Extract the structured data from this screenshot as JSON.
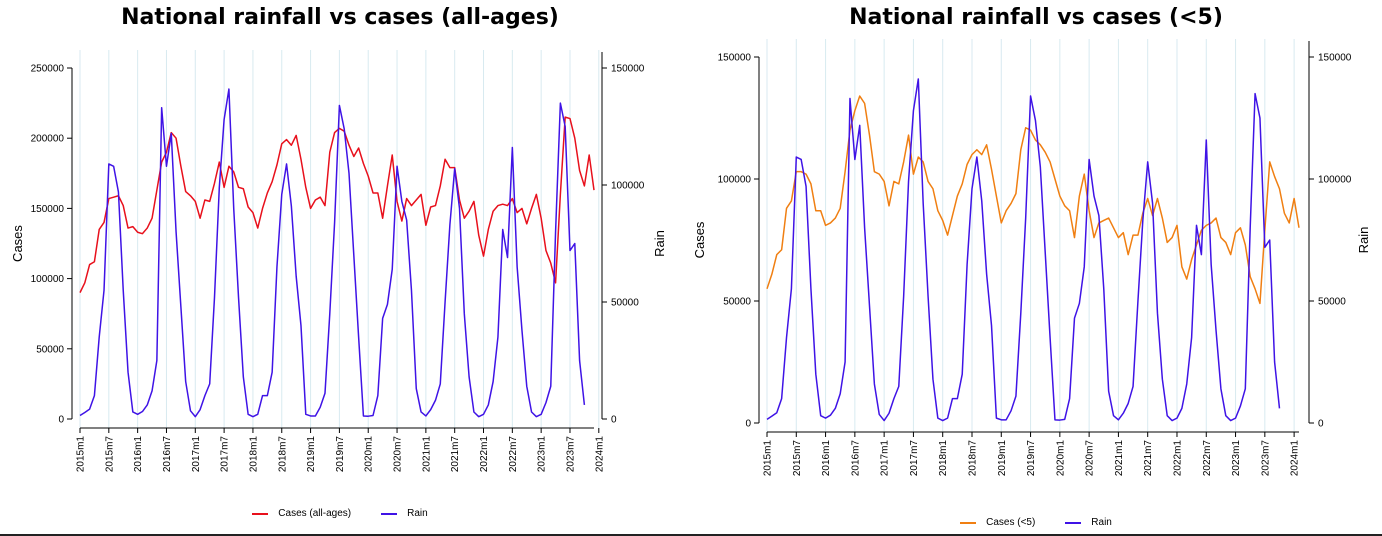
{
  "colors": {
    "cases_all": "#e8101c",
    "cases_u5": "#f07f12",
    "rain": "#3f13e6",
    "vgrid": "#d8eaf0"
  },
  "chart_data": [
    {
      "type": "line",
      "title": "National rainfall vs cases (all-ages)",
      "ylabel": "Cases",
      "y2label": "Rain",
      "ylim": [
        0,
        250000
      ],
      "y2lim": [
        0,
        150000
      ],
      "yticks": [
        "0",
        "50000",
        "100000",
        "150000",
        "200000",
        "250000"
      ],
      "y2ticks": [
        "0",
        "50000",
        "100000",
        "150000"
      ],
      "xticks": [
        "2015m1",
        "2015m7",
        "2016m1",
        "2016m7",
        "2017m1",
        "2017m7",
        "2018m1",
        "2018m7",
        "2019m1",
        "2019m7",
        "2020m1",
        "2020m7",
        "2021m1",
        "2021m7",
        "2022m1",
        "2022m7",
        "2023m1",
        "2023m7",
        "2024m1"
      ],
      "grid": "vertical lines at x ticks",
      "legend_position": "bottom",
      "series": [
        {
          "name": "Cases (all-ages)",
          "axis": "left",
          "color": "#e8101c",
          "values": [
            90000,
            97000,
            110000,
            112000,
            135000,
            140000,
            157000,
            158000,
            159000,
            152000,
            136000,
            137000,
            133000,
            132000,
            136000,
            143000,
            163000,
            183000,
            190000,
            204000,
            200000,
            180000,
            162000,
            159000,
            155000,
            143000,
            156000,
            155000,
            168000,
            183000,
            165000,
            180000,
            176000,
            165000,
            164000,
            151000,
            147000,
            136000,
            150000,
            161000,
            169000,
            181000,
            196000,
            199000,
            195000,
            202000,
            185000,
            165000,
            150000,
            156000,
            158000,
            152000,
            190000,
            204000,
            207000,
            205000,
            195000,
            187000,
            193000,
            182000,
            173000,
            161000,
            161000,
            143000,
            166000,
            188000,
            155000,
            141000,
            157000,
            152000,
            156000,
            160000,
            138000,
            151000,
            152000,
            166000,
            185000,
            179000,
            179000,
            156000,
            143000,
            148000,
            155000,
            131000,
            116000,
            135000,
            148000,
            152000,
            153000,
            152000,
            157000,
            147000,
            150000,
            139000,
            150000,
            160000,
            143000,
            120000,
            111000,
            97000,
            160000,
            215000,
            214000,
            200000,
            177000,
            166000,
            188000,
            163000
          ]
        },
        {
          "name": "Rain",
          "axis": "right",
          "color": "#3f13e6",
          "values": [
            1500,
            2800,
            4200,
            10000,
            35000,
            55000,
            109000,
            108000,
            97000,
            55000,
            20000,
            3000,
            2000,
            3200,
            6000,
            12000,
            25000,
            133000,
            108000,
            122000,
            80000,
            48000,
            16000,
            3500,
            1000,
            4000,
            10000,
            15000,
            52000,
            99000,
            128000,
            141000,
            90000,
            52000,
            18000,
            2000,
            1000,
            2000,
            10000,
            10000,
            20000,
            65000,
            96000,
            109000,
            91000,
            61000,
            40000,
            2000,
            1300,
            1300,
            5000,
            11000,
            45000,
            84000,
            134000,
            124000,
            105000,
            70000,
            35000,
            1300,
            1200,
            1500,
            10000,
            43000,
            49000,
            64000,
            108000,
            93000,
            85000,
            55000,
            13000,
            3000,
            1300,
            4000,
            8000,
            15000,
            50000,
            83000,
            107000,
            90000,
            45000,
            18000,
            3000,
            1000,
            2000,
            6000,
            16000,
            35000,
            81000,
            69000,
            116000,
            65000,
            38000,
            14000,
            3000,
            1000,
            2000,
            7000,
            14000,
            80000,
            135000,
            125000,
            72000,
            75000,
            25000,
            6000
          ]
        }
      ]
    },
    {
      "type": "line",
      "title": "National rainfall vs cases (<5)",
      "ylabel": "Cases",
      "y2label": "Rain",
      "ylim": [
        0,
        150000
      ],
      "y2lim": [
        0,
        150000
      ],
      "yticks": [
        "0",
        "50000",
        "100000",
        "150000"
      ],
      "y2ticks": [
        "0",
        "50000",
        "100000",
        "150000"
      ],
      "xticks": [
        "2015m1",
        "2015m7",
        "2016m1",
        "2016m7",
        "2017m1",
        "2017m7",
        "2018m1",
        "2018m7",
        "2019m1",
        "2019m7",
        "2020m1",
        "2020m7",
        "2021m1",
        "2021m7",
        "2022m1",
        "2022m7",
        "2023m1",
        "2023m7",
        "2024m1"
      ],
      "grid": "vertical lines at x ticks",
      "legend_position": "bottom",
      "series": [
        {
          "name": "Cases (<5)",
          "axis": "left",
          "color": "#f07f12",
          "values": [
            55000,
            61000,
            69000,
            71000,
            88000,
            91000,
            103000,
            103000,
            102000,
            98000,
            87000,
            87000,
            81000,
            82000,
            84000,
            88000,
            103000,
            120000,
            128000,
            134000,
            131000,
            118000,
            103000,
            102000,
            99000,
            89000,
            99000,
            98000,
            107000,
            118000,
            102000,
            109000,
            107000,
            99000,
            96000,
            87000,
            83000,
            77000,
            85000,
            93000,
            98000,
            106000,
            110000,
            112000,
            110000,
            114000,
            104000,
            93000,
            82000,
            87000,
            90000,
            94000,
            112000,
            121000,
            120000,
            116000,
            114000,
            111000,
            107000,
            100000,
            93000,
            89000,
            87000,
            76000,
            93000,
            102000,
            87000,
            76000,
            82000,
            83000,
            84000,
            80000,
            76000,
            78000,
            69000,
            77000,
            77000,
            86000,
            92000,
            85000,
            92000,
            84000,
            74000,
            76000,
            81000,
            64000,
            59000,
            67000,
            73000,
            79000,
            81000,
            82000,
            84000,
            76000,
            74000,
            69000,
            78000,
            80000,
            73000,
            60000,
            55000,
            49000,
            79000,
            107000,
            101000,
            96000,
            86000,
            82000,
            92000,
            80000
          ]
        },
        {
          "name": "Rain",
          "axis": "right",
          "color": "#3f13e6",
          "values": [
            1500,
            2800,
            4200,
            10000,
            35000,
            55000,
            109000,
            108000,
            97000,
            55000,
            20000,
            3000,
            2000,
            3200,
            6000,
            12000,
            25000,
            133000,
            108000,
            122000,
            80000,
            48000,
            16000,
            3500,
            1000,
            4000,
            10000,
            15000,
            52000,
            99000,
            128000,
            141000,
            90000,
            52000,
            18000,
            2000,
            1000,
            2000,
            10000,
            10000,
            20000,
            65000,
            96000,
            109000,
            91000,
            61000,
            40000,
            2000,
            1300,
            1300,
            5000,
            11000,
            45000,
            84000,
            134000,
            124000,
            105000,
            70000,
            35000,
            1300,
            1200,
            1500,
            10000,
            43000,
            49000,
            64000,
            108000,
            93000,
            85000,
            55000,
            13000,
            3000,
            1300,
            4000,
            8000,
            15000,
            50000,
            83000,
            107000,
            90000,
            45000,
            18000,
            3000,
            1000,
            2000,
            6000,
            16000,
            35000,
            81000,
            69000,
            116000,
            65000,
            38000,
            14000,
            3000,
            1000,
            2000,
            7000,
            14000,
            80000,
            135000,
            125000,
            72000,
            75000,
            25000,
            6000
          ]
        }
      ]
    }
  ]
}
